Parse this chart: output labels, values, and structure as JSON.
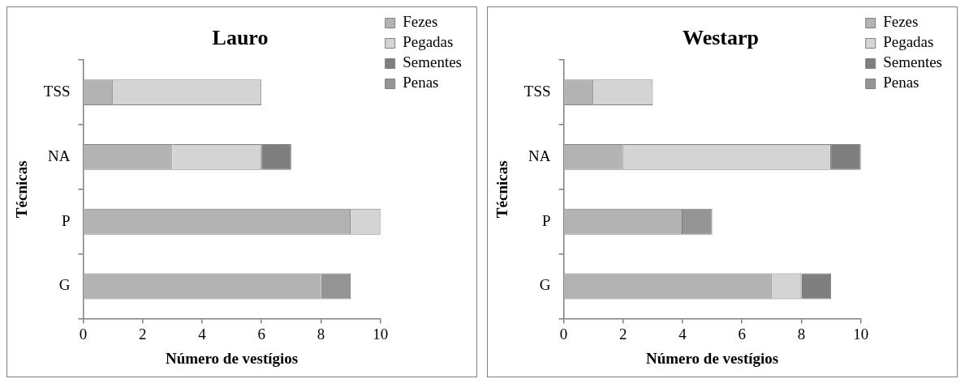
{
  "chart_data": [
    {
      "type": "bar",
      "orientation": "horizontal",
      "stacked": true,
      "title": "Lauro",
      "xlabel": "Número de vestígios",
      "ylabel": "Técnicas",
      "categories": [
        "TSS",
        "NA",
        "P",
        "G"
      ],
      "xlim": [
        0,
        10
      ],
      "xticks": [
        0,
        2,
        4,
        6,
        8,
        10
      ],
      "grid": false,
      "legend": "top right",
      "series": [
        {
          "name": "Fezes",
          "color": "#b3b3b3",
          "values": [
            1,
            3,
            9,
            8
          ]
        },
        {
          "name": "Pegadas",
          "color": "#d4d4d4",
          "values": [
            5,
            3,
            1,
            null
          ]
        },
        {
          "name": "Sementes",
          "color": "#7f7f7f",
          "values": [
            null,
            1,
            null,
            null
          ]
        },
        {
          "name": "Penas",
          "color": "#959595",
          "values": [
            null,
            null,
            null,
            1
          ]
        }
      ]
    },
    {
      "type": "bar",
      "orientation": "horizontal",
      "stacked": true,
      "title": "Westarp",
      "xlabel": "Número de vestígios",
      "ylabel": "Técnicas",
      "categories": [
        "TSS",
        "NA",
        "P",
        "G"
      ],
      "xlim": [
        0,
        10
      ],
      "xticks": [
        0,
        2,
        4,
        6,
        8,
        10
      ],
      "grid": false,
      "legend": "top right",
      "series": [
        {
          "name": "Fezes",
          "color": "#b3b3b3",
          "values": [
            1,
            2,
            4,
            7
          ]
        },
        {
          "name": "Pegadas",
          "color": "#d4d4d4",
          "values": [
            2,
            7,
            null,
            1
          ]
        },
        {
          "name": "Sementes",
          "color": "#7f7f7f",
          "values": [
            null,
            1,
            null,
            1
          ]
        },
        {
          "name": "Penas",
          "color": "#959595",
          "values": [
            null,
            null,
            1,
            null
          ]
        }
      ]
    }
  ]
}
